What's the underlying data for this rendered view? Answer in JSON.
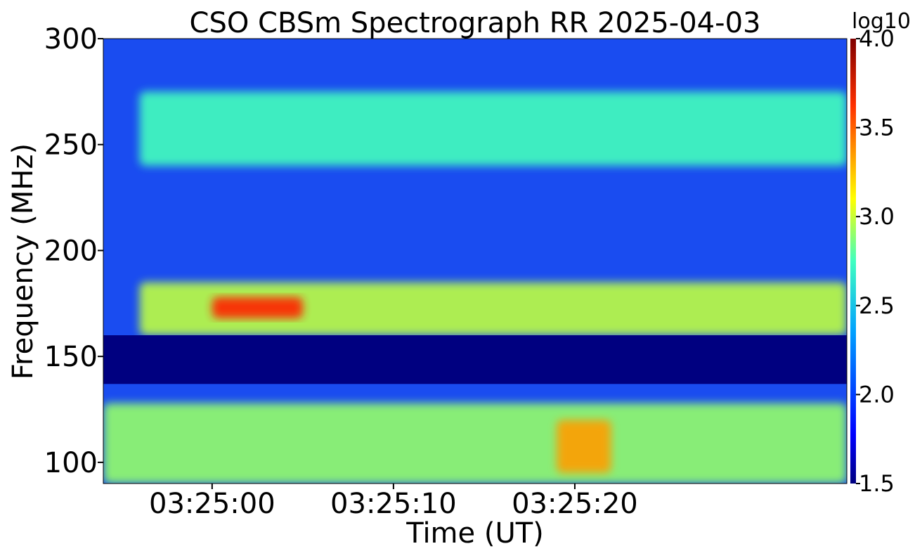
{
  "chart_data": {
    "type": "heatmap",
    "title": "CSO CBSm Spectrograph RR 2025-04-03",
    "xlabel": "Time (UT)",
    "ylabel": "Frequency (MHz)",
    "x_unit": "UT",
    "y_unit": "MHz",
    "x_range": [
      "03:24:54",
      "03:25:35"
    ],
    "ylim": [
      90,
      300
    ],
    "x_ticks": [
      "03:25:00",
      "03:25:10",
      "03:25:20"
    ],
    "y_ticks": [
      "100",
      "150",
      "200",
      "250",
      "300"
    ],
    "colorbar": {
      "label": "log10",
      "range": [
        1.5,
        4.0
      ],
      "ticks": [
        "1.5",
        "2.0",
        "2.5",
        "3.0",
        "3.5",
        "4.0"
      ],
      "colormap": "jet"
    },
    "features": [
      {
        "band": "radio burst lane",
        "freq_range": [
          160,
          185
        ],
        "time_range": [
          "03:24:56",
          "03:25:35"
        ],
        "level": 2.9
      },
      {
        "band": "burst core",
        "freq_range": [
          168,
          178
        ],
        "time_range": [
          "03:25:00",
          "03:25:05"
        ],
        "level": 3.6
      },
      {
        "band": "upper fine structure",
        "freq_range": [
          240,
          275
        ],
        "time_range": [
          "03:24:56",
          "03:25:35"
        ],
        "level": 2.6
      },
      {
        "band": "blocked band",
        "freq_range": [
          137,
          160
        ],
        "time_range": [
          "03:24:54",
          "03:25:35"
        ],
        "level": 1.5
      },
      {
        "band": "low-frequency emission",
        "freq_range": [
          90,
          128
        ],
        "time_range": [
          "03:24:54",
          "03:25:35"
        ],
        "level": 2.8
      },
      {
        "band": "low-frequency enhancement",
        "freq_range": [
          95,
          120
        ],
        "time_range": [
          "03:25:19",
          "03:25:22"
        ],
        "level": 3.3
      }
    ]
  }
}
